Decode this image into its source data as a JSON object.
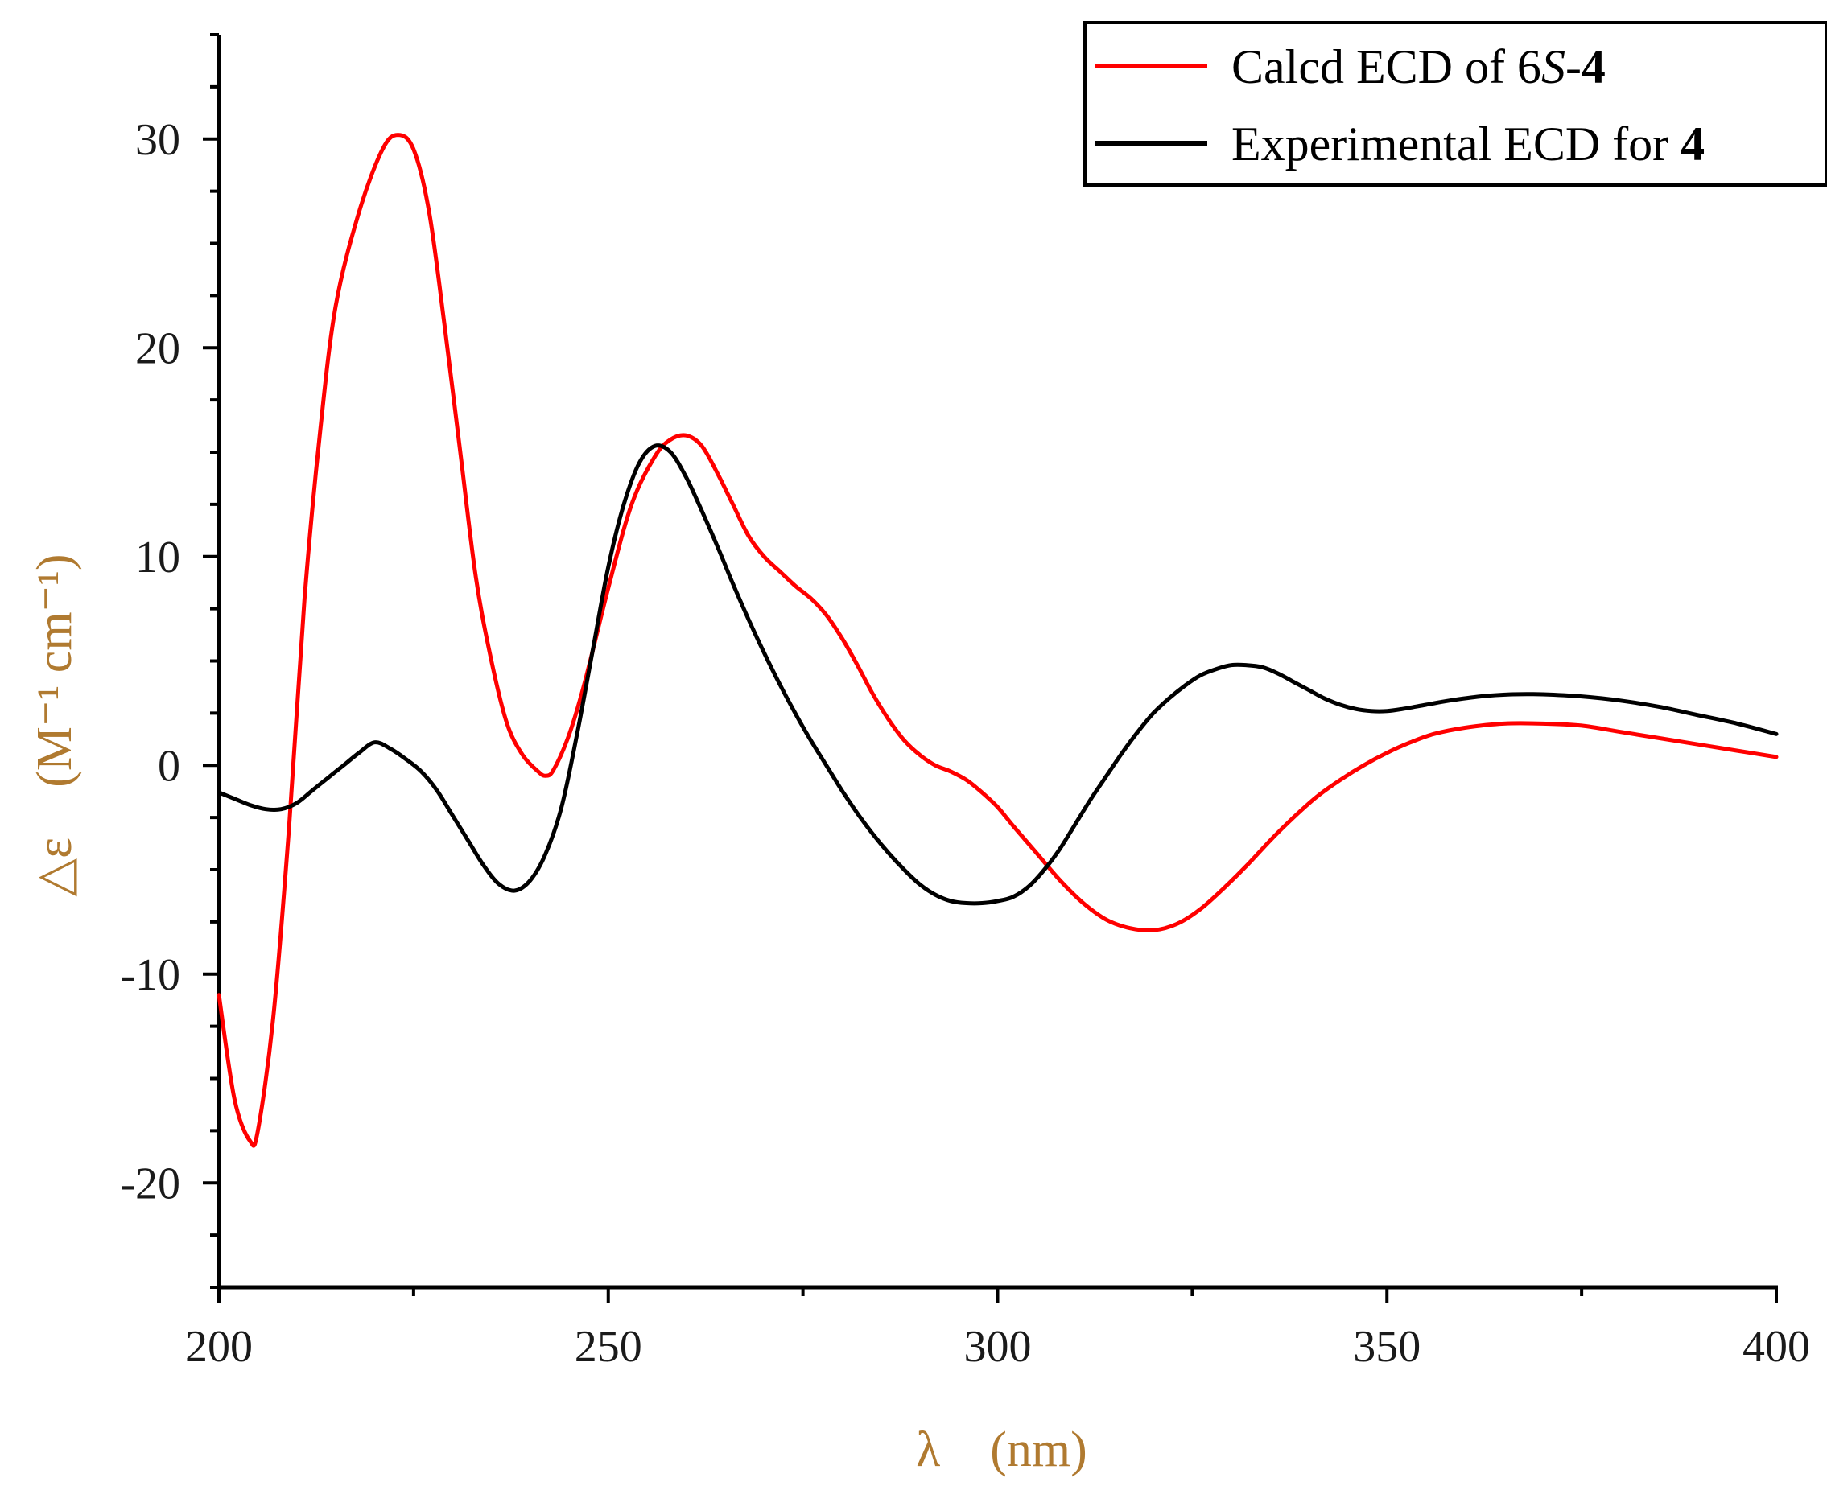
{
  "chart_data": {
    "type": "line",
    "title": "",
    "xlabel": "λ　(nm)",
    "ylabel": "△ε　(M⁻¹ cm⁻¹)",
    "xlim": [
      200,
      400
    ],
    "ylim": [
      -25,
      35
    ],
    "x_ticks": [
      200,
      250,
      300,
      350,
      400
    ],
    "y_ticks": [
      -20,
      -10,
      0,
      10,
      20,
      30
    ],
    "x_tick_labels": [
      "200",
      "250",
      "300",
      "350",
      "400"
    ],
    "y_tick_labels": [
      "-20",
      "-10",
      "0",
      "10",
      "20",
      "30"
    ],
    "grid": false,
    "legend_position": "top-right",
    "label_color": "#b07a30",
    "series": [
      {
        "name": "Calcd ECD of 6S-4",
        "color": "#ff0000",
        "points": [
          [
            200,
            -11
          ],
          [
            202,
            -16
          ],
          [
            204,
            -18
          ],
          [
            205,
            -17.5
          ],
          [
            207,
            -12
          ],
          [
            209,
            -3
          ],
          [
            211,
            8
          ],
          [
            213,
            16
          ],
          [
            215,
            22
          ],
          [
            218,
            26.5
          ],
          [
            221,
            29.5
          ],
          [
            223,
            30.2
          ],
          [
            225,
            29.5
          ],
          [
            227,
            26.5
          ],
          [
            229,
            21
          ],
          [
            231,
            15
          ],
          [
            233,
            9
          ],
          [
            235,
            5
          ],
          [
            237,
            2
          ],
          [
            239,
            0.5
          ],
          [
            241,
            -0.3
          ],
          [
            242,
            -0.5
          ],
          [
            243,
            -0.2
          ],
          [
            245,
            1.5
          ],
          [
            247,
            4
          ],
          [
            250,
            8.5
          ],
          [
            253,
            12.5
          ],
          [
            256,
            14.8
          ],
          [
            258,
            15.6
          ],
          [
            260,
            15.8
          ],
          [
            262,
            15.3
          ],
          [
            264,
            14
          ],
          [
            266,
            12.5
          ],
          [
            268,
            11
          ],
          [
            270,
            10
          ],
          [
            272,
            9.3
          ],
          [
            274,
            8.6
          ],
          [
            276,
            8
          ],
          [
            278,
            7.2
          ],
          [
            280,
            6.1
          ],
          [
            282,
            4.8
          ],
          [
            284,
            3.4
          ],
          [
            286,
            2.2
          ],
          [
            288,
            1.2
          ],
          [
            290,
            0.5
          ],
          [
            292,
            0
          ],
          [
            294,
            -0.3
          ],
          [
            296,
            -0.7
          ],
          [
            298,
            -1.3
          ],
          [
            300,
            -2
          ],
          [
            302,
            -2.9
          ],
          [
            305,
            -4.2
          ],
          [
            308,
            -5.5
          ],
          [
            311,
            -6.6
          ],
          [
            314,
            -7.4
          ],
          [
            317,
            -7.8
          ],
          [
            320,
            -7.9
          ],
          [
            323,
            -7.6
          ],
          [
            326,
            -6.9
          ],
          [
            329,
            -5.9
          ],
          [
            332,
            -4.8
          ],
          [
            335,
            -3.6
          ],
          [
            338,
            -2.5
          ],
          [
            341,
            -1.5
          ],
          [
            344,
            -0.7
          ],
          [
            347,
            0
          ],
          [
            350,
            0.6
          ],
          [
            353,
            1.1
          ],
          [
            356,
            1.5
          ],
          [
            360,
            1.8
          ],
          [
            365,
            2
          ],
          [
            370,
            2
          ],
          [
            375,
            1.9
          ],
          [
            380,
            1.6
          ],
          [
            385,
            1.3
          ],
          [
            390,
            1
          ],
          [
            395,
            0.7
          ],
          [
            400,
            0.4
          ]
        ]
      },
      {
        "name": "Experimental ECD for 4",
        "color": "#000000",
        "points": [
          [
            200,
            -1.3
          ],
          [
            202,
            -1.6
          ],
          [
            204,
            -1.9
          ],
          [
            206,
            -2.1
          ],
          [
            208,
            -2.1
          ],
          [
            210,
            -1.8
          ],
          [
            212,
            -1.2
          ],
          [
            214,
            -0.6
          ],
          [
            216,
            0
          ],
          [
            218,
            0.6
          ],
          [
            220,
            1.1
          ],
          [
            222,
            0.8
          ],
          [
            224,
            0.3
          ],
          [
            226,
            -0.3
          ],
          [
            228,
            -1.2
          ],
          [
            230,
            -2.4
          ],
          [
            232,
            -3.6
          ],
          [
            234,
            -4.8
          ],
          [
            236,
            -5.7
          ],
          [
            238,
            -6
          ],
          [
            240,
            -5.5
          ],
          [
            242,
            -4.2
          ],
          [
            244,
            -2
          ],
          [
            246,
            1.5
          ],
          [
            248,
            5.5
          ],
          [
            250,
            9.5
          ],
          [
            252,
            12.5
          ],
          [
            254,
            14.5
          ],
          [
            256,
            15.3
          ],
          [
            258,
            15
          ],
          [
            260,
            13.8
          ],
          [
            262,
            12.2
          ],
          [
            264,
            10.5
          ],
          [
            266,
            8.7
          ],
          [
            268,
            7
          ],
          [
            270,
            5.4
          ],
          [
            272,
            3.9
          ],
          [
            274,
            2.5
          ],
          [
            276,
            1.2
          ],
          [
            278,
            0
          ],
          [
            280,
            -1.2
          ],
          [
            282,
            -2.3
          ],
          [
            284,
            -3.3
          ],
          [
            286,
            -4.2
          ],
          [
            288,
            -5
          ],
          [
            290,
            -5.7
          ],
          [
            292,
            -6.2
          ],
          [
            294,
            -6.5
          ],
          [
            296,
            -6.6
          ],
          [
            298,
            -6.6
          ],
          [
            300,
            -6.5
          ],
          [
            302,
            -6.3
          ],
          [
            304,
            -5.8
          ],
          [
            306,
            -5
          ],
          [
            308,
            -4
          ],
          [
            310,
            -2.8
          ],
          [
            312,
            -1.6
          ],
          [
            314,
            -0.5
          ],
          [
            316,
            0.6
          ],
          [
            318,
            1.6
          ],
          [
            320,
            2.5
          ],
          [
            322,
            3.2
          ],
          [
            324,
            3.8
          ],
          [
            326,
            4.3
          ],
          [
            328,
            4.6
          ],
          [
            330,
            4.8
          ],
          [
            332,
            4.8
          ],
          [
            334,
            4.7
          ],
          [
            336,
            4.4
          ],
          [
            338,
            4
          ],
          [
            340,
            3.6
          ],
          [
            342,
            3.2
          ],
          [
            344,
            2.9
          ],
          [
            346,
            2.7
          ],
          [
            348,
            2.6
          ],
          [
            350,
            2.6
          ],
          [
            352,
            2.7
          ],
          [
            355,
            2.9
          ],
          [
            358,
            3.1
          ],
          [
            362,
            3.3
          ],
          [
            366,
            3.4
          ],
          [
            370,
            3.4
          ],
          [
            375,
            3.3
          ],
          [
            380,
            3.1
          ],
          [
            385,
            2.8
          ],
          [
            390,
            2.4
          ],
          [
            395,
            2
          ],
          [
            400,
            1.5
          ]
        ]
      }
    ],
    "legend": [
      {
        "color": "#ff0000",
        "parts": [
          "Calcd ECD of 6",
          "S",
          "-",
          "4"
        ]
      },
      {
        "color": "#000000",
        "parts": [
          "Experimental ECD for ",
          "4"
        ]
      }
    ]
  }
}
